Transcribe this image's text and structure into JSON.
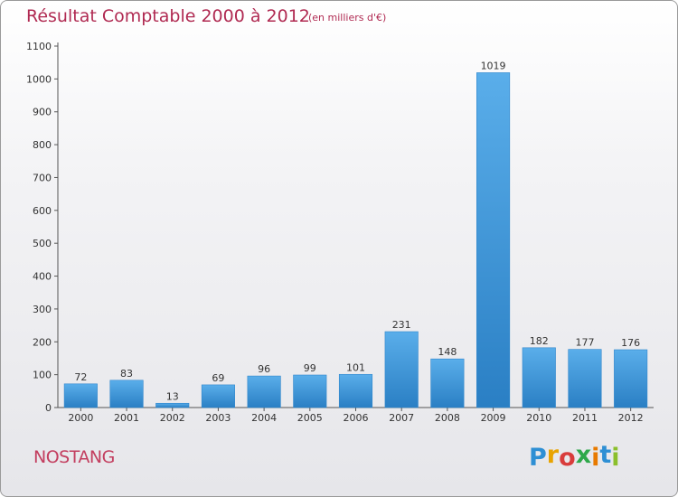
{
  "header": {
    "title": "Résultat Comptable 2000 à 2012",
    "subtitle": "(en milliers d'€)"
  },
  "footer": {
    "commune": "NOSTANG",
    "logo_letters": [
      "P",
      "r",
      "o",
      "x",
      "i",
      "t",
      "i"
    ],
    "logo_colors": [
      "#2e8fd4",
      "#e8a300",
      "#d93c3c",
      "#2ea84a",
      "#e87a00",
      "#2e8fd4",
      "#8bbf2c"
    ]
  },
  "chart_data": {
    "type": "bar",
    "title": "Résultat Comptable 2000 à 2012",
    "subtitle": "(en milliers d'€)",
    "categories": [
      "2000",
      "2001",
      "2002",
      "2003",
      "2004",
      "2005",
      "2006",
      "2007",
      "2008",
      "2009",
      "2010",
      "2011",
      "2012"
    ],
    "values": [
      72,
      83,
      13,
      69,
      96,
      99,
      101,
      231,
      148,
      1019,
      182,
      177,
      176
    ],
    "ylim": [
      0,
      1100
    ],
    "yticks": [
      0,
      100,
      200,
      300,
      400,
      500,
      600,
      700,
      800,
      900,
      1000,
      1100
    ],
    "bar_color": "#3d9ae0",
    "grid": false,
    "data_labels": true
  }
}
